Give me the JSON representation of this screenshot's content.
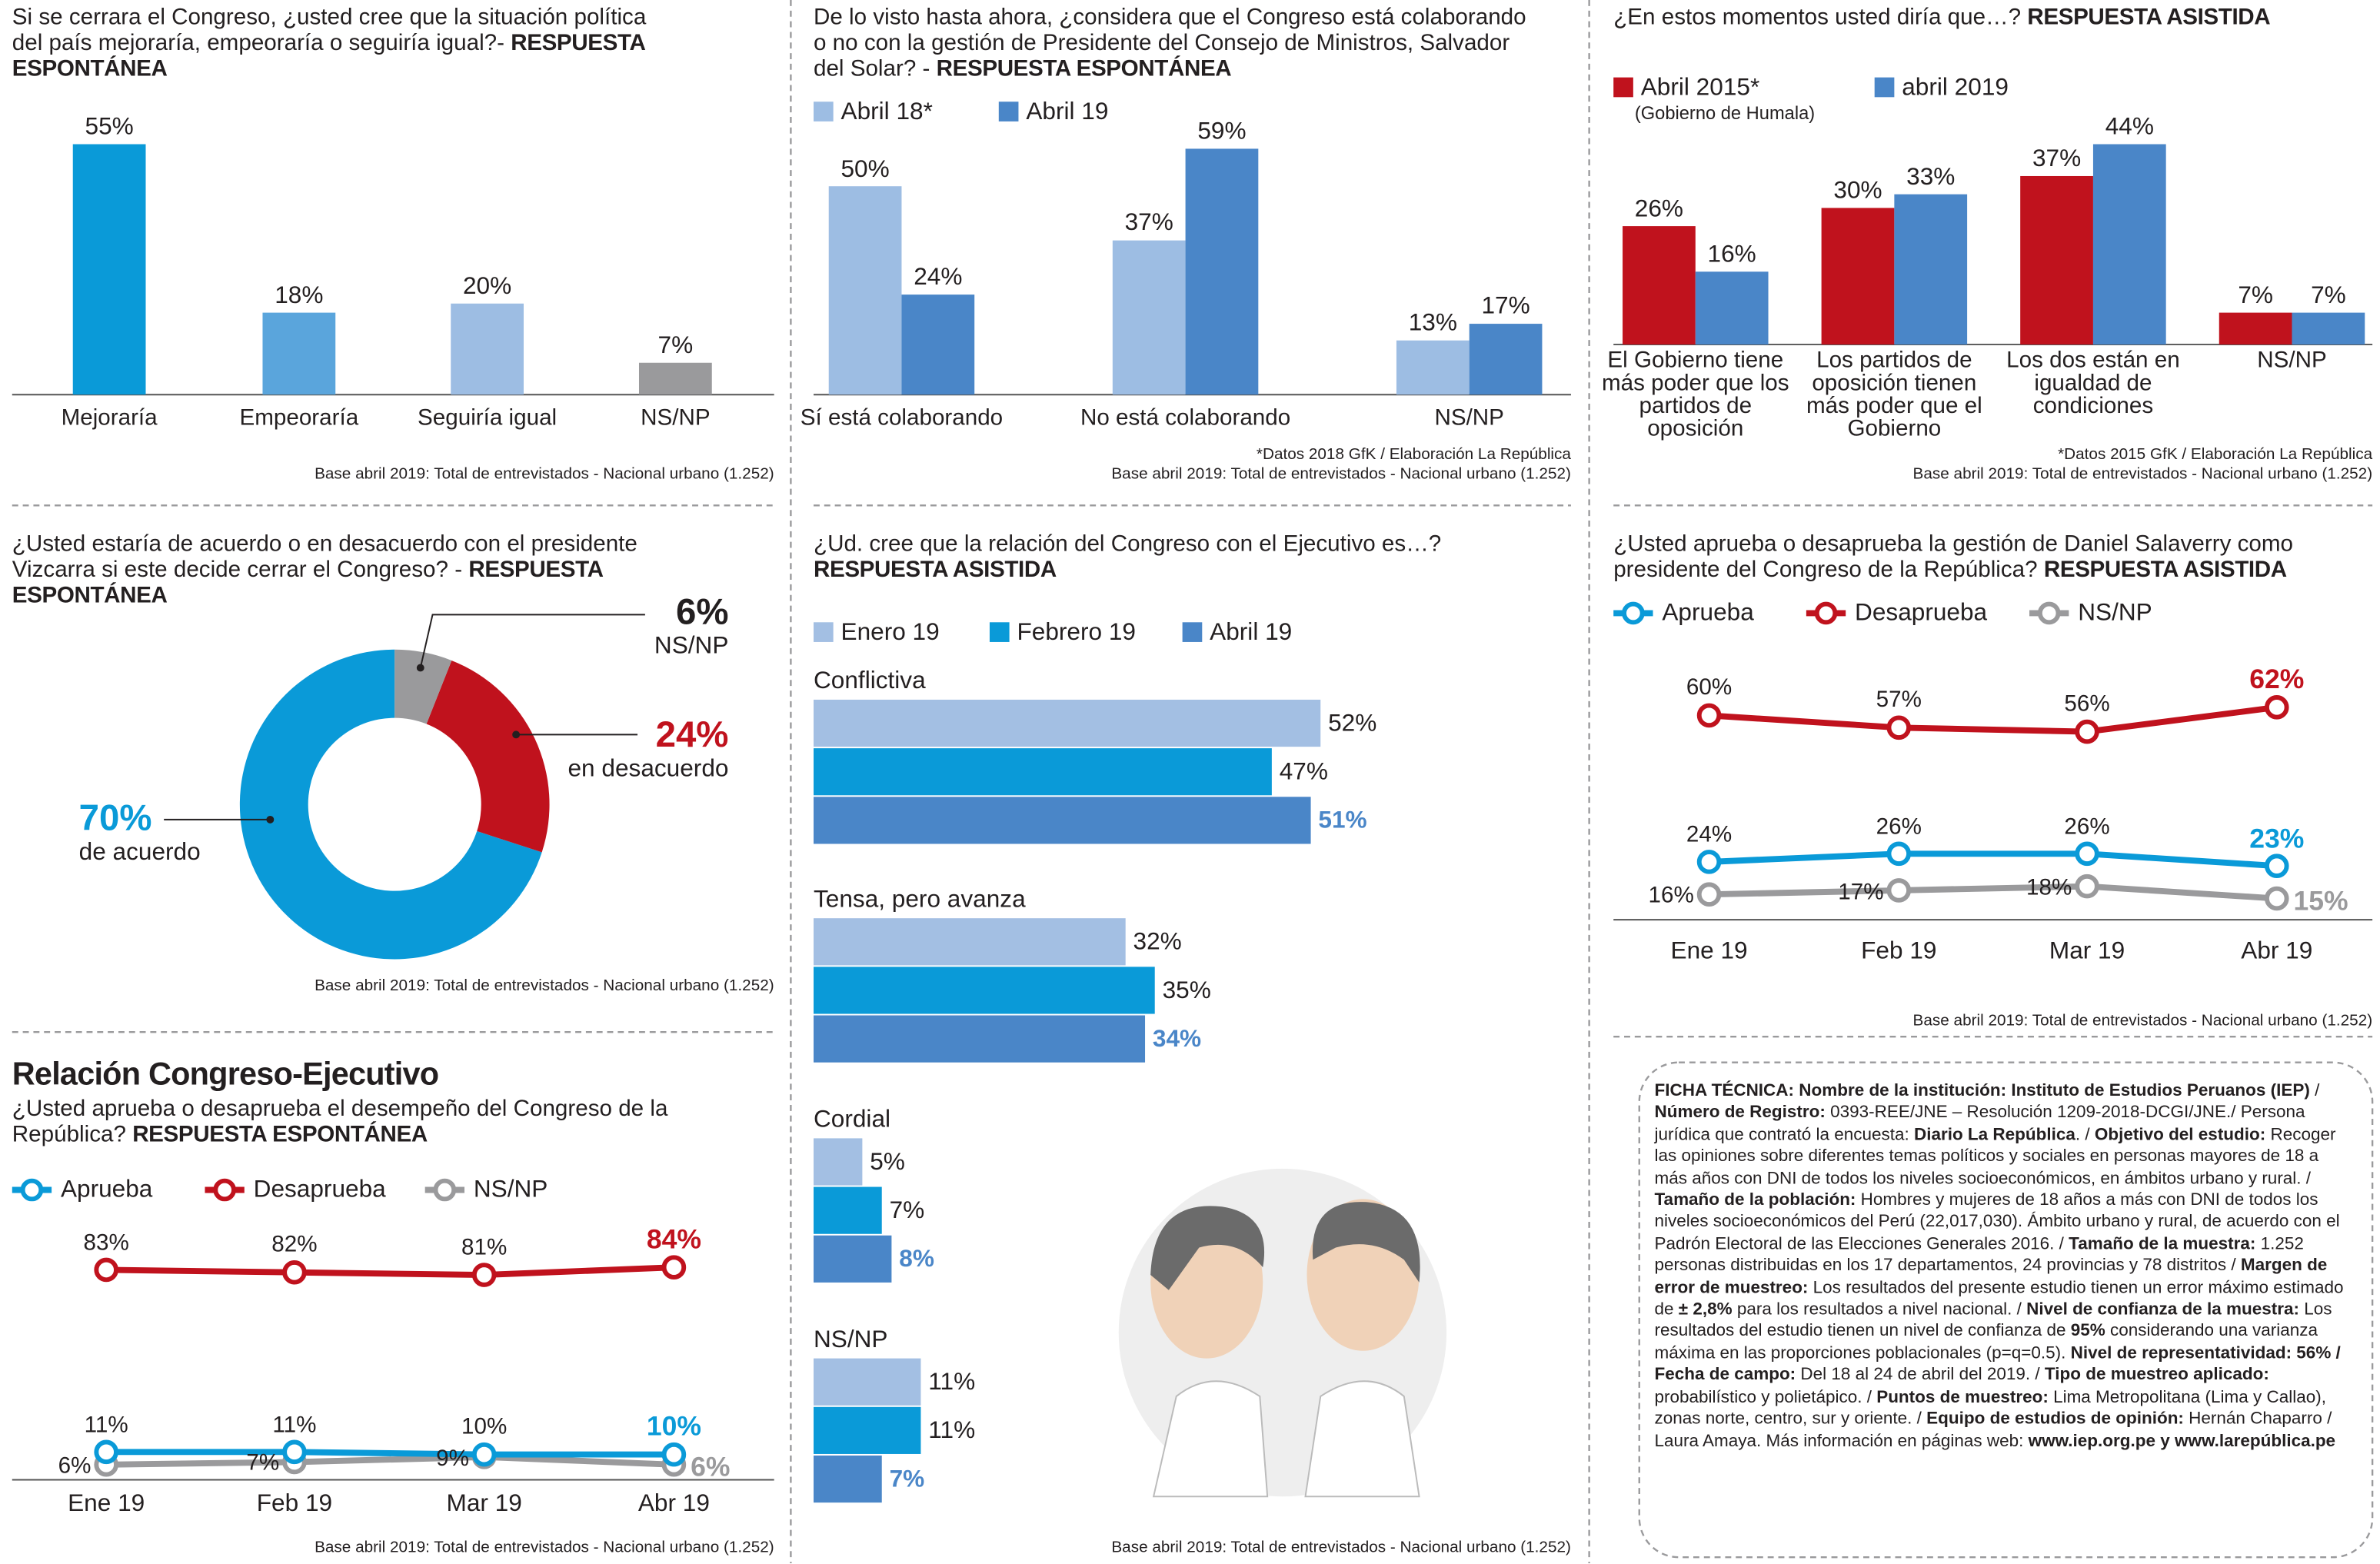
{
  "chart_data": [
    {
      "type": "bar",
      "title": "Si se cerrara el Congreso, ¿usted cree que la situación política del país mejoraría, empeoraría o seguiría igual?-",
      "subtitle": "RESPUESTA ESPONTÁNEA",
      "categories": [
        "Mejoraría",
        "Empeoraría",
        "Seguiría igual",
        "NS/NP"
      ],
      "values": [
        55,
        18,
        20,
        7
      ],
      "value_labels": [
        "55%",
        "18%",
        "20%",
        "7%"
      ],
      "colors": [
        "#0a9ad8",
        "#5aa5dc",
        "#9dbde3",
        "#9a9a9c"
      ],
      "notes": [
        "Base abril 2019: Total de entrevistados - Nacional urbano (1.252)"
      ]
    },
    {
      "type": "bar",
      "title": "De lo visto hasta ahora, ¿considera que el Congreso está colaborando o no con la gestión de Presidente del Consejo de Ministros, Salvador del Solar? -",
      "subtitle": "RESPUESTA ESPONTÁNEA",
      "categories": [
        "Sí está colaborando",
        "No está colaborando",
        "NS/NP"
      ],
      "series": [
        {
          "name": "Abril 18*",
          "color": "#9dbde3",
          "values": [
            50,
            37,
            13
          ],
          "value_labels": [
            "50%",
            "37%",
            "13%"
          ]
        },
        {
          "name": "Abril 19",
          "color": "#4a86c8",
          "values": [
            24,
            59,
            17
          ],
          "value_labels": [
            "24%",
            "59%",
            "17%"
          ]
        }
      ],
      "notes": [
        "*Datos 2018 GfK / Elaboración La República",
        "Base abril 2019: Total de entrevistados - Nacional urbano (1.252)"
      ]
    },
    {
      "type": "bar",
      "title": "¿En estos momentos usted diría que…?",
      "subtitle": "RESPUESTA ASISTIDA",
      "categories": [
        "El Gobierno tiene más poder que los partidos de oposición",
        "Los partidos de oposición tienen más poder que el Gobierno",
        "Los dos están en igualdad de condiciones",
        "NS/NP"
      ],
      "series": [
        {
          "name": "Abril 2015*",
          "legend_note": "(Gobierno de Humala)",
          "color": "#c0121d",
          "values": [
            26,
            30,
            37,
            7
          ],
          "value_labels": [
            "26%",
            "30%",
            "37%",
            "7%"
          ]
        },
        {
          "name": "abril 2019",
          "color": "#4a86c8",
          "values": [
            16,
            33,
            44,
            7
          ],
          "value_labels": [
            "16%",
            "33%",
            "44%",
            "7%"
          ]
        }
      ],
      "notes": [
        "*Datos 2015 GfK / Elaboración La República",
        "Base abril 2019: Total de entrevistados - Nacional urbano (1.252)"
      ]
    },
    {
      "type": "donut",
      "title": "¿Usted estaría de acuerdo o en desacuerdo con el presidente Vizcarra si este decide cerrar el Congreso? -",
      "subtitle": "RESPUESTA ESPONTÁNEA",
      "categories": [
        "de acuerdo",
        "en desacuerdo",
        "NS/NP"
      ],
      "values": [
        70,
        24,
        6
      ],
      "value_labels": [
        "70%",
        "24%",
        "6%"
      ],
      "colors": [
        "#0a9ad8",
        "#c0121d",
        "#9a9a9c"
      ],
      "label_colors": [
        "#0a9ad8",
        "#c0121d",
        "#231f20"
      ],
      "notes": [
        "Base abril 2019: Total de entrevistados - Nacional urbano (1.252)"
      ]
    },
    {
      "type": "barh",
      "title": "¿Ud. cree que la relación del Congreso con el Ejecutivo es…?",
      "subtitle": "RESPUESTA ASISTIDA",
      "categories": [
        "Conflictiva",
        "Tensa, pero avanza",
        "Cordial",
        "NS/NP"
      ],
      "series": [
        {
          "name": "Enero 19",
          "color": "#a3bfe3",
          "values": [
            52,
            32,
            5,
            11
          ],
          "value_labels": [
            "52%",
            "32%",
            "5%",
            "11%"
          ]
        },
        {
          "name": "Febrero 19",
          "color": "#0a9ad8",
          "values": [
            47,
            35,
            7,
            11
          ],
          "value_labels": [
            "47%",
            "35%",
            "7%",
            "11%"
          ]
        },
        {
          "name": "Abril 19",
          "color": "#4a86c8",
          "values": [
            51,
            34,
            8,
            7
          ],
          "value_labels": [
            "51%",
            "34%",
            "8%",
            "7%"
          ]
        }
      ],
      "notes": [
        "Base abril 2019: Total de entrevistados - Nacional urbano (1.252)"
      ]
    },
    {
      "type": "line",
      "title": "¿Usted aprueba o desaprueba la gestión de Daniel Salaverry como presidente del Congreso de la República?",
      "subtitle": "RESPUESTA ASISTIDA",
      "categories": [
        "Ene 19",
        "Feb 19",
        "Mar 19",
        "Abr 19"
      ],
      "series": [
        {
          "name": "Aprueba",
          "color": "#0a9ad8",
          "values": [
            24,
            26,
            26,
            23
          ],
          "value_labels": [
            "24%",
            "26%",
            "26%",
            "23%"
          ]
        },
        {
          "name": "Desaprueba",
          "color": "#c0121d",
          "values": [
            60,
            57,
            56,
            62
          ],
          "value_labels": [
            "60%",
            "57%",
            "56%",
            "62%"
          ]
        },
        {
          "name": "NS/NP",
          "color": "#9a9a9c",
          "values": [
            16,
            17,
            18,
            15
          ],
          "value_labels": [
            "16%",
            "17%",
            "18%",
            "15%"
          ]
        }
      ],
      "notes": [
        "Base abril 2019: Total de entrevistados - Nacional urbano (1.252)"
      ]
    },
    {
      "type": "line",
      "heading": "Relación Congreso-Ejecutivo",
      "title": "¿Usted aprueba o desaprueba el desempeño del Congreso de la República?",
      "subtitle": "RESPUESTA ESPONTÁNEA",
      "categories": [
        "Ene 19",
        "Feb 19",
        "Mar 19",
        "Abr 19"
      ],
      "series": [
        {
          "name": "Aprueba",
          "color": "#0a9ad8",
          "values": [
            11,
            11,
            10,
            10
          ],
          "value_labels": [
            "11%",
            "11%",
            "10%",
            "10%"
          ]
        },
        {
          "name": "Desaprueba",
          "color": "#c0121d",
          "values": [
            83,
            82,
            81,
            84
          ],
          "value_labels": [
            "83%",
            "82%",
            "81%",
            "84%"
          ]
        },
        {
          "name": "NS/NP",
          "color": "#9a9a9c",
          "values": [
            6,
            7,
            9,
            6
          ],
          "value_labels": [
            "6%",
            "7%",
            "9%",
            "6%"
          ]
        }
      ],
      "notes": [
        "Base abril 2019: Total de entrevistados - Nacional urbano (1.252)"
      ]
    }
  ],
  "ficha_tecnica": [
    {
      "text": "FICHA TÉCNICA: Nombre de la institución: Instituto de Estudios Peruanos (IEP)",
      "bold": true
    },
    {
      "text": " / ",
      "bold": false
    },
    {
      "text": "Número de Registro:",
      "bold": true
    },
    {
      "text": " 0393-REE/JNE – Resolución 1209-2018-DCGI/JNE./ Persona jurídica que contrató la encuesta: ",
      "bold": false
    },
    {
      "text": "Diario La República",
      "bold": true
    },
    {
      "text": ". / ",
      "bold": false
    },
    {
      "text": "Objetivo del estudio:",
      "bold": true
    },
    {
      "text": " Recoger las opiniones sobre diferentes temas políticos y sociales en personas mayores de 18 a más años con DNI de todos los niveles socioeconómicos, en ámbitos urbano y rural. / ",
      "bold": false
    },
    {
      "text": "Tamaño de la población:",
      "bold": true
    },
    {
      "text": " Hombres y mujeres de 18 años a más con DNI de todos los niveles socioeconómicos del Perú (22,017,030). Ámbito urbano y rural, de acuerdo con el Padrón Electoral de las Elecciones Generales 2016. / ",
      "bold": false
    },
    {
      "text": "Tamaño de la muestra:",
      "bold": true
    },
    {
      "text": " 1.252 personas distribuidas en los 17 departamentos, 24 provincias y 78 distritos / ",
      "bold": false
    },
    {
      "text": "Margen de error de muestreo:",
      "bold": true
    },
    {
      "text": " Los resultados del presente estudio tienen un error máximo estimado de ",
      "bold": false
    },
    {
      "text": "± 2,8%",
      "bold": true
    },
    {
      "text": " para los resultados a nivel nacional. / ",
      "bold": false
    },
    {
      "text": "Nivel de confianza de la muestra:",
      "bold": true
    },
    {
      "text": " Los resultados del estudio tienen un nivel de confianza de ",
      "bold": false
    },
    {
      "text": "95%",
      "bold": true
    },
    {
      "text": " considerando una varianza máxima en las proporciones poblacionales (p=q=0.5). ",
      "bold": false
    },
    {
      "text": "Nivel de representatividad: 56% / Fecha de campo:",
      "bold": true
    },
    {
      "text": " Del 18 al 24 de abril del 2019. / ",
      "bold": false
    },
    {
      "text": "Tipo de muestreo aplicado:",
      "bold": true
    },
    {
      "text": " probabilístico y polietápico. / ",
      "bold": false
    },
    {
      "text": "Puntos de muestreo:",
      "bold": true
    },
    {
      "text": " Lima Metropolitana (Lima y Callao), zonas norte, centro, sur y oriente. / ",
      "bold": false
    },
    {
      "text": "Equipo de estudios de opinión:",
      "bold": true
    },
    {
      "text": " Hernán Chaparro / Laura Amaya. Más información en páginas web: ",
      "bold": false
    },
    {
      "text": "www.iep.org.pe y www.larepública.pe",
      "bold": true
    }
  ]
}
